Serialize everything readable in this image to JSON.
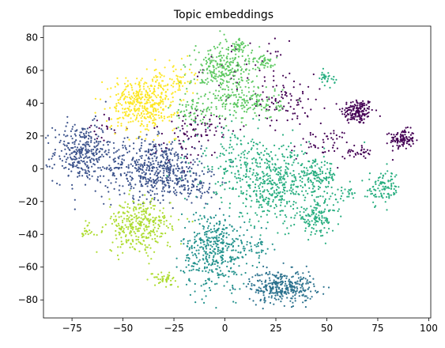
{
  "chart_data": {
    "type": "scatter",
    "title": "Topic embeddings",
    "xlabel": "",
    "ylabel": "",
    "xlim": [
      -89,
      101
    ],
    "ylim": [
      -91,
      87
    ],
    "x_ticks": [
      -75,
      -50,
      -25,
      0,
      25,
      50,
      75,
      100
    ],
    "y_ticks": [
      -80,
      -60,
      -40,
      -20,
      0,
      20,
      40,
      60,
      80
    ],
    "grid": false,
    "legend": "none",
    "colormap": "viridis",
    "series": [
      {
        "color": "#440154",
        "clusters": [
          {
            "cx": 65,
            "cy": 35,
            "sx": 4,
            "sy": 4,
            "n": 160
          },
          {
            "cx": 87,
            "cy": 18,
            "sx": 3,
            "sy": 3,
            "n": 110
          },
          {
            "cx": 30,
            "cy": 42,
            "sx": 7,
            "sy": 8,
            "n": 90
          },
          {
            "cx": 48,
            "cy": 15,
            "sx": 8,
            "sy": 5,
            "n": 50
          },
          {
            "cx": 10,
            "cy": 62,
            "sx": 10,
            "sy": 8,
            "n": 40
          },
          {
            "cx": -10,
            "cy": 25,
            "sx": 10,
            "sy": 5,
            "n": 60
          },
          {
            "cx": -20,
            "cy": 15,
            "sx": 8,
            "sy": 6,
            "n": 40
          },
          {
            "cx": 65,
            "cy": 10,
            "sx": 3,
            "sy": 2,
            "n": 30
          },
          {
            "cx": -60,
            "cy": 25,
            "sx": 4,
            "sy": 4,
            "n": 20
          }
        ]
      },
      {
        "color": "#3b528b",
        "clusters": [
          {
            "cx": -70,
            "cy": 10,
            "sx": 7,
            "sy": 9,
            "n": 320
          },
          {
            "cx": -35,
            "cy": 0,
            "sx": 12,
            "sy": 9,
            "n": 520
          },
          {
            "cx": -15,
            "cy": -10,
            "sx": 6,
            "sy": 5,
            "n": 80
          }
        ]
      },
      {
        "color": "#2c728e",
        "clusters": [
          {
            "cx": 28,
            "cy": -72,
            "sx": 8,
            "sy": 5,
            "n": 330
          }
        ]
      },
      {
        "color": "#21918c",
        "clusters": [
          {
            "cx": -5,
            "cy": -50,
            "sx": 8,
            "sy": 12,
            "n": 420
          },
          {
            "cx": 15,
            "cy": -48,
            "sx": 4,
            "sy": 4,
            "n": 40
          }
        ]
      },
      {
        "color": "#28ae80",
        "clusters": [
          {
            "cx": 25,
            "cy": -10,
            "sx": 12,
            "sy": 12,
            "n": 420
          },
          {
            "cx": 45,
            "cy": -30,
            "sx": 5,
            "sy": 5,
            "n": 130
          },
          {
            "cx": 45,
            "cy": -5,
            "sx": 5,
            "sy": 5,
            "n": 120
          },
          {
            "cx": 78,
            "cy": -12,
            "sx": 4,
            "sy": 5,
            "n": 100
          },
          {
            "cx": 5,
            "cy": 5,
            "sx": 10,
            "sy": 10,
            "n": 160
          },
          {
            "cx": 50,
            "cy": 55,
            "sx": 2,
            "sy": 2,
            "n": 30
          },
          {
            "cx": 60,
            "cy": -15,
            "sx": 2,
            "sy": 2,
            "n": 20
          }
        ]
      },
      {
        "color": "#5ec962",
        "clusters": [
          {
            "cx": 0,
            "cy": 60,
            "sx": 8,
            "sy": 9,
            "n": 300
          },
          {
            "cx": 12,
            "cy": 40,
            "sx": 8,
            "sy": 5,
            "n": 140
          },
          {
            "cx": 20,
            "cy": 65,
            "sx": 3,
            "sy": 2,
            "n": 40
          },
          {
            "cx": 7,
            "cy": 75,
            "sx": 2,
            "sy": 2,
            "n": 30
          },
          {
            "cx": -15,
            "cy": 35,
            "sx": 6,
            "sy": 5,
            "n": 70
          }
        ]
      },
      {
        "color": "#addc30",
        "clusters": [
          {
            "cx": -42,
            "cy": -35,
            "sx": 8,
            "sy": 8,
            "n": 330
          },
          {
            "cx": -30,
            "cy": -67,
            "sx": 3,
            "sy": 2,
            "n": 40
          },
          {
            "cx": -68,
            "cy": -38,
            "sx": 2,
            "sy": 2,
            "n": 20
          }
        ]
      },
      {
        "color": "#fde725",
        "clusters": [
          {
            "cx": -40,
            "cy": 40,
            "sx": 8,
            "sy": 8,
            "n": 420
          },
          {
            "cx": -25,
            "cy": 55,
            "sx": 5,
            "sy": 5,
            "n": 60
          }
        ]
      }
    ]
  }
}
